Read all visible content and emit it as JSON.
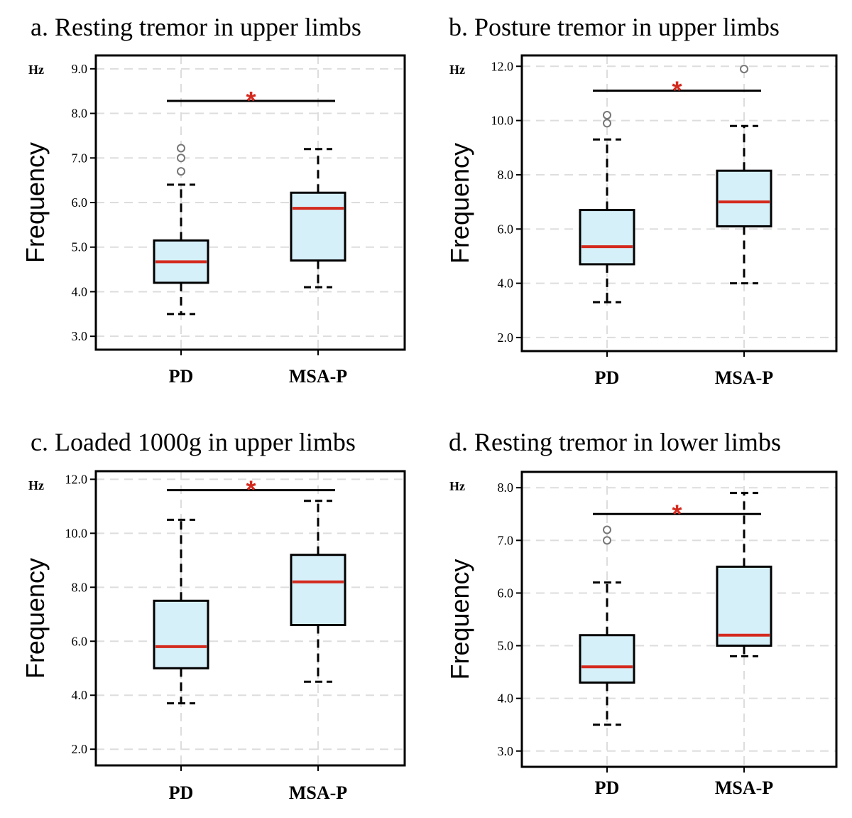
{
  "figure": {
    "colors": {
      "box_fill": "#d6f0fa",
      "median": "#d42a1e",
      "significance": "#d42a1e",
      "grid": "#dddddd",
      "outlier": "#777777",
      "ink": "#000000"
    }
  },
  "chart_data": [
    {
      "type": "box",
      "title": "a. Resting tremor in upper limbs",
      "ylabel": "Frequency",
      "yunit": "Hz",
      "ylim": [
        2.7,
        9.3
      ],
      "yticks": [
        3.0,
        4.0,
        5.0,
        6.0,
        7.0,
        8.0,
        9.0
      ],
      "grid": true,
      "categories": [
        "PD",
        "MSA-P"
      ],
      "boxes": [
        {
          "category": "PD",
          "whisker_low": 3.5,
          "q1": 4.2,
          "median": 4.67,
          "q3": 5.15,
          "whisker_high": 6.4,
          "outliers": [
            6.7,
            7.0,
            7.22
          ]
        },
        {
          "category": "MSA-P",
          "whisker_low": 4.1,
          "q1": 4.7,
          "median": 5.87,
          "q3": 6.22,
          "whisker_high": 7.2,
          "outliers": []
        }
      ],
      "significance": {
        "between": [
          "PD",
          "MSA-P"
        ],
        "y": 8.28,
        "label": "*"
      }
    },
    {
      "type": "box",
      "title": "b. Posture tremor in upper limbs",
      "ylabel": "Frequency",
      "yunit": "Hz",
      "ylim": [
        1.5,
        12.4
      ],
      "yticks": [
        2.0,
        4.0,
        6.0,
        8.0,
        10.0,
        12.0
      ],
      "grid": true,
      "categories": [
        "PD",
        "MSA-P"
      ],
      "boxes": [
        {
          "category": "PD",
          "whisker_low": 3.3,
          "q1": 4.7,
          "median": 5.35,
          "q3": 6.7,
          "whisker_high": 9.3,
          "outliers": [
            9.9,
            10.2
          ]
        },
        {
          "category": "MSA-P",
          "whisker_low": 4.0,
          "q1": 6.1,
          "median": 7.0,
          "q3": 8.15,
          "whisker_high": 9.8,
          "outliers": [
            11.9
          ]
        }
      ],
      "significance": {
        "between": [
          "PD",
          "MSA-P"
        ],
        "y": 11.1,
        "label": "*"
      }
    },
    {
      "type": "box",
      "title": "c. Loaded 1000g in upper limbs",
      "ylabel": "Frequency",
      "yunit": "Hz",
      "ylim": [
        1.4,
        12.3
      ],
      "yticks": [
        2.0,
        4.0,
        6.0,
        8.0,
        10.0,
        12.0
      ],
      "grid": true,
      "categories": [
        "PD",
        "MSA-P"
      ],
      "boxes": [
        {
          "category": "PD",
          "whisker_low": 3.7,
          "q1": 5.0,
          "median": 5.8,
          "q3": 7.5,
          "whisker_high": 10.5,
          "outliers": []
        },
        {
          "category": "MSA-P",
          "whisker_low": 4.5,
          "q1": 6.6,
          "median": 8.2,
          "q3": 9.2,
          "whisker_high": 11.2,
          "outliers": []
        }
      ],
      "significance": {
        "between": [
          "PD",
          "MSA-P"
        ],
        "y": 11.6,
        "label": "*"
      }
    },
    {
      "type": "box",
      "title": "d. Resting tremor in lower limbs",
      "ylabel": "Frequency",
      "yunit": "Hz",
      "ylim": [
        2.7,
        8.3
      ],
      "yticks": [
        3.0,
        4.0,
        5.0,
        6.0,
        7.0,
        8.0
      ],
      "grid": true,
      "categories": [
        "PD",
        "MSA-P"
      ],
      "boxes": [
        {
          "category": "PD",
          "whisker_low": 3.5,
          "q1": 4.3,
          "median": 4.6,
          "q3": 5.2,
          "whisker_high": 6.2,
          "outliers": [
            7.0,
            7.2
          ]
        },
        {
          "category": "MSA-P",
          "whisker_low": 4.8,
          "q1": 5.0,
          "median": 5.2,
          "q3": 6.5,
          "whisker_high": 7.9,
          "outliers": []
        }
      ],
      "significance": {
        "between": [
          "PD",
          "MSA-P"
        ],
        "y": 7.5,
        "label": "*"
      }
    }
  ]
}
